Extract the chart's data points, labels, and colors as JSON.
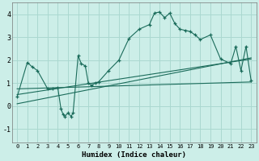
{
  "xlabel": "Humidex (Indice chaleur)",
  "bg_color": "#cceee8",
  "grid_color": "#aad8d0",
  "line_color": "#1a6b5a",
  "xlim": [
    -0.5,
    23.5
  ],
  "ylim": [
    -1.6,
    4.5
  ],
  "xticks": [
    0,
    1,
    2,
    3,
    4,
    5,
    6,
    7,
    8,
    9,
    10,
    11,
    12,
    13,
    14,
    15,
    16,
    17,
    18,
    19,
    20,
    21,
    22,
    23
  ],
  "yticks": [
    -1,
    0,
    1,
    2,
    3,
    4
  ],
  "main_series": [
    [
      0,
      0.4
    ],
    [
      1,
      1.9
    ],
    [
      1.5,
      1.7
    ],
    [
      2,
      1.55
    ],
    [
      3,
      0.75
    ],
    [
      3.5,
      0.75
    ],
    [
      4,
      0.8
    ],
    [
      4.3,
      -0.1
    ],
    [
      4.5,
      -0.35
    ],
    [
      4.7,
      -0.45
    ],
    [
      5,
      -0.3
    ],
    [
      5.3,
      -0.45
    ],
    [
      5.5,
      -0.3
    ],
    [
      6,
      2.2
    ],
    [
      6.3,
      1.85
    ],
    [
      6.7,
      1.75
    ],
    [
      7,
      1.0
    ],
    [
      7.3,
      0.9
    ],
    [
      7.7,
      1.0
    ],
    [
      8,
      1.05
    ],
    [
      9,
      1.55
    ],
    [
      10,
      2.0
    ],
    [
      11,
      2.95
    ],
    [
      12,
      3.35
    ],
    [
      13,
      3.55
    ],
    [
      13.5,
      4.05
    ],
    [
      14,
      4.1
    ],
    [
      14.5,
      3.85
    ],
    [
      15,
      4.05
    ],
    [
      15.5,
      3.6
    ],
    [
      16,
      3.35
    ],
    [
      16.5,
      3.3
    ],
    [
      17,
      3.25
    ],
    [
      17.5,
      3.1
    ],
    [
      18,
      2.9
    ],
    [
      19,
      3.1
    ],
    [
      20,
      2.05
    ],
    [
      21,
      1.85
    ],
    [
      21.5,
      2.6
    ],
    [
      22,
      1.55
    ],
    [
      22.5,
      2.6
    ],
    [
      23,
      1.1
    ]
  ],
  "line1": [
    [
      0,
      0.75
    ],
    [
      23,
      1.05
    ]
  ],
  "line2": [
    [
      0,
      0.5
    ],
    [
      23,
      2.05
    ]
  ],
  "line3": [
    [
      0,
      0.1
    ],
    [
      23,
      2.1
    ]
  ]
}
